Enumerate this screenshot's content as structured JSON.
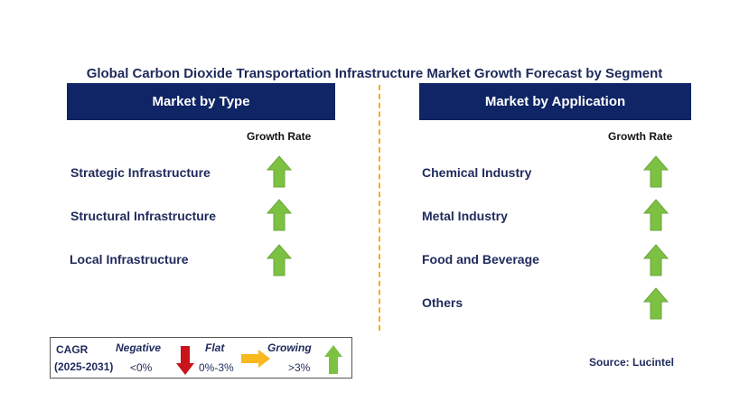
{
  "title": "Global Carbon Dioxide Transportation Infrastructure Market  Growth Forecast by Segment",
  "left_panel": {
    "header": "Market by Type",
    "column_header": "Growth Rate",
    "items": [
      {
        "label": "Strategic Infrastructure",
        "trend": "growing"
      },
      {
        "label": "Structural Infrastructure",
        "trend": "growing"
      },
      {
        "label": "Local Infrastructure",
        "trend": "growing"
      }
    ]
  },
  "right_panel": {
    "header": "Market by Application",
    "column_header": "Growth Rate",
    "items": [
      {
        "label": "Chemical Industry",
        "trend": "growing"
      },
      {
        "label": "Metal Industry",
        "trend": "growing"
      },
      {
        "label": "Food and Beverage",
        "trend": "growing"
      },
      {
        "label": "Others",
        "trend": "growing"
      }
    ]
  },
  "legend": {
    "cagr_label": "CAGR",
    "period": "(2025-2031)",
    "negative_label": "Negative",
    "negative_range": "<0%",
    "flat_label": "Flat",
    "flat_range": "0%-3%",
    "growing_label": "Growing",
    "growing_range": ">3%"
  },
  "source": "Source: Lucintel",
  "colors": {
    "header_bg": "#0f2565",
    "growing": "#7dc142",
    "negative": "#c8141a",
    "flat": "#f7b820",
    "divider": "#f2b01e"
  }
}
